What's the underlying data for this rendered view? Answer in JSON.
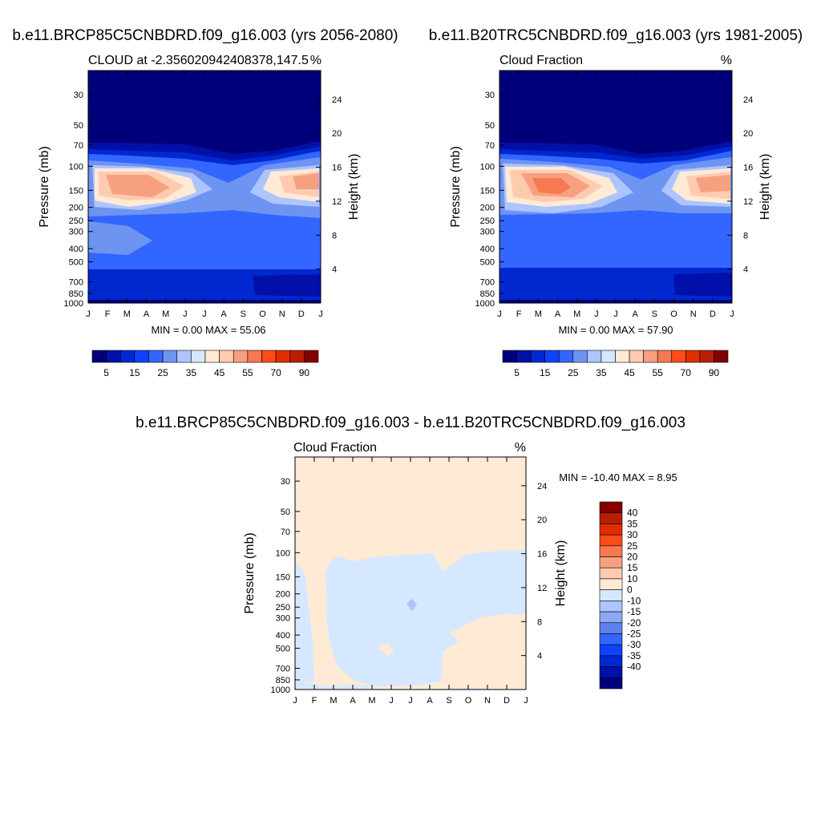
{
  "chart_data": [
    {
      "type": "heatmap",
      "title": "b.e11.BRCP85C5CNBDRD.f09_g16.003 (yrs 2056-2080)",
      "left_string": "CLOUD at -2.356020942408378,147.5",
      "right_string": "%",
      "ylabel": "Pressure (mb)",
      "ylabel_right": "Height (km)",
      "x_tick_labels": [
        "J",
        "F",
        "M",
        "A",
        "M",
        "J",
        "J",
        "A",
        "S",
        "O",
        "N",
        "D",
        "J"
      ],
      "y_ticks": [
        30,
        50,
        70,
        100,
        150,
        200,
        250,
        300,
        400,
        500,
        700,
        850,
        1000
      ],
      "height_ticks": [
        24,
        20,
        16,
        12,
        8,
        4
      ],
      "ylim": [
        20,
        1000
      ],
      "min_max_text": "MIN =   0.00 MAX =  55.06",
      "colorbar_labels": [
        "5",
        "15",
        "25",
        "35",
        "45",
        "55",
        "70",
        "90"
      ],
      "colors": [
        "#00007a",
        "#0010a8",
        "#0028d0",
        "#0f42ff",
        "#3366ff",
        "#6e94f2",
        "#adc4ff",
        "#d6e8ff",
        "#ffead6",
        "#ffcbb0",
        "#f7a080",
        "#f87852",
        "#ff4a1a",
        "#e02e00",
        "#b81e00",
        "#840000"
      ]
    },
    {
      "type": "heatmap",
      "title": "b.e11.B20TRC5CNBDRD.f09_g16.003 (yrs 1981-2005)",
      "left_string": "Cloud Fraction",
      "right_string": "%",
      "ylabel": "Pressure (mb)",
      "ylabel_right": "Height (km)",
      "x_tick_labels": [
        "J",
        "F",
        "M",
        "A",
        "M",
        "J",
        "J",
        "A",
        "S",
        "O",
        "N",
        "D",
        "J"
      ],
      "y_ticks": [
        30,
        50,
        70,
        100,
        150,
        200,
        250,
        300,
        400,
        500,
        700,
        850,
        1000
      ],
      "height_ticks": [
        24,
        20,
        16,
        12,
        8,
        4
      ],
      "ylim": [
        20,
        1000
      ],
      "min_max_text": "MIN =   0.00 MAX =  57.90",
      "colorbar_labels": [
        "5",
        "15",
        "25",
        "35",
        "45",
        "55",
        "70",
        "90"
      ],
      "colors": [
        "#00007a",
        "#0010a8",
        "#0028d0",
        "#0f42ff",
        "#3366ff",
        "#6e94f2",
        "#adc4ff",
        "#d6e8ff",
        "#ffead6",
        "#ffcbb0",
        "#f7a080",
        "#f87852",
        "#ff4a1a",
        "#e02e00",
        "#b81e00",
        "#840000"
      ]
    },
    {
      "type": "heatmap",
      "title": "b.e11.BRCP85C5CNBDRD.f09_g16.003 - b.e11.B20TRC5CNBDRD.f09_g16.003",
      "left_string": "Cloud Fraction",
      "right_string": "%",
      "ylabel": "Pressure (mb)",
      "ylabel_right": "Height (km)",
      "x_tick_labels": [
        "J",
        "F",
        "M",
        "A",
        "M",
        "J",
        "J",
        "A",
        "S",
        "O",
        "N",
        "D",
        "J"
      ],
      "y_ticks": [
        30,
        50,
        70,
        100,
        150,
        200,
        250,
        300,
        400,
        500,
        700,
        850,
        1000
      ],
      "height_ticks": [
        24,
        20,
        16,
        12,
        8,
        4
      ],
      "ylim": [
        20,
        1000
      ],
      "min_max_text": "MIN = -10.40 MAX =   8.95",
      "colorbar_labels": [
        "40",
        "35",
        "30",
        "25",
        "20",
        "15",
        "10",
        "0",
        "-10",
        "-15",
        "-20",
        "-25",
        "-30",
        "-35",
        "-40"
      ],
      "colors": [
        "#840000",
        "#b81e00",
        "#e02e00",
        "#ff4a1a",
        "#f87852",
        "#f7a080",
        "#ffcbb0",
        "#ffead6",
        "#d6e8ff",
        "#adc4ff",
        "#8aaaf2",
        "#5d82f0",
        "#3366ff",
        "#0f42ff",
        "#0028d0",
        "#0010a8",
        "#00007a"
      ]
    }
  ]
}
